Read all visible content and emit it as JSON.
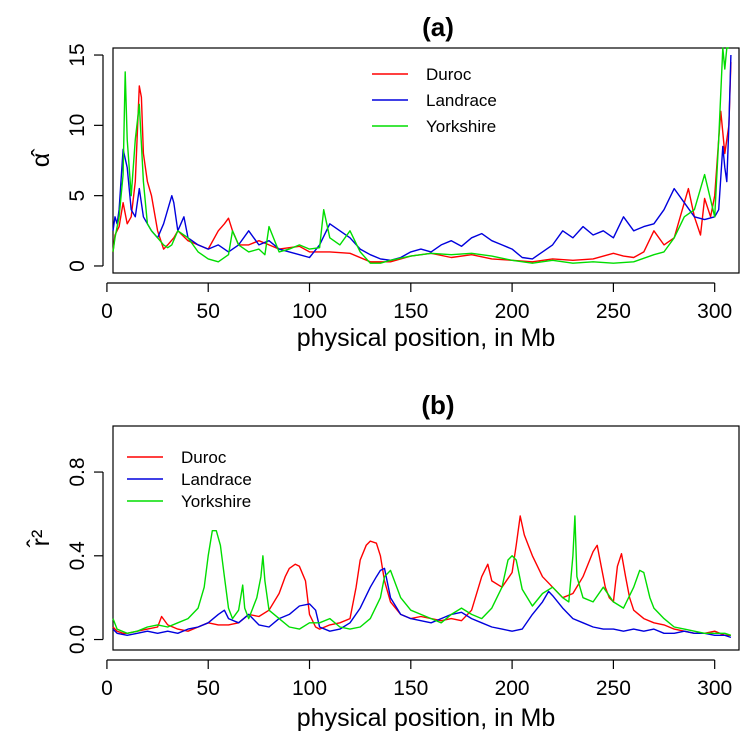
{
  "chart_data": [
    {
      "type": "line",
      "title": "(a)",
      "xlabel": "physical position, in Mb",
      "ylabel": "α̂",
      "xlim": [
        3,
        312
      ],
      "ylim": [
        -0.5,
        15.5
      ],
      "xticks": [
        0,
        50,
        100,
        150,
        200,
        250,
        300
      ],
      "yticks": [
        0,
        5,
        10,
        15
      ],
      "legend_position": "top-center",
      "grid": false,
      "series": [
        {
          "name": "Duroc",
          "color": "#ff0000",
          "x": [
            3,
            4,
            6,
            8,
            10,
            12,
            14,
            16,
            17,
            18,
            20,
            22,
            25,
            28,
            30,
            33,
            35,
            40,
            45,
            50,
            55,
            58,
            60,
            62,
            65,
            70,
            75,
            80,
            85,
            90,
            95,
            100,
            110,
            120,
            130,
            140,
            150,
            160,
            170,
            180,
            190,
            200,
            210,
            220,
            230,
            240,
            250,
            255,
            260,
            265,
            270,
            275,
            280,
            285,
            287,
            290,
            293,
            295,
            298,
            300,
            302,
            303,
            305,
            307,
            308
          ],
          "y": [
            1.0,
            2.2,
            2.8,
            4.5,
            3.0,
            3.5,
            6.0,
            12.8,
            12.0,
            8.0,
            6.0,
            5.0,
            2.5,
            1.2,
            1.5,
            2.0,
            2.5,
            1.8,
            1.5,
            1.2,
            2.5,
            3.0,
            3.4,
            2.5,
            1.5,
            1.5,
            1.8,
            1.5,
            1.2,
            1.3,
            1.4,
            1.0,
            1.0,
            0.9,
            0.3,
            0.3,
            0.7,
            0.9,
            0.6,
            0.8,
            0.5,
            0.4,
            0.3,
            0.5,
            0.4,
            0.5,
            0.9,
            0.7,
            0.6,
            1.0,
            2.5,
            1.5,
            2.0,
            4.5,
            5.5,
            3.5,
            2.2,
            4.8,
            3.5,
            5.0,
            9.0,
            11.0,
            8.0,
            10.0,
            14.5
          ]
        },
        {
          "name": "Landrace",
          "color": "#0000dd",
          "x": [
            3,
            4,
            5,
            6,
            8,
            10,
            12,
            14,
            16,
            18,
            20,
            22,
            25,
            28,
            30,
            32,
            33,
            35,
            38,
            40,
            45,
            50,
            55,
            60,
            65,
            70,
            75,
            80,
            85,
            90,
            95,
            100,
            105,
            110,
            115,
            120,
            125,
            130,
            135,
            140,
            145,
            150,
            155,
            160,
            165,
            170,
            175,
            180,
            185,
            190,
            195,
            200,
            205,
            210,
            215,
            220,
            225,
            230,
            235,
            240,
            245,
            250,
            255,
            260,
            265,
            270,
            275,
            280,
            285,
            290,
            295,
            300,
            302,
            304,
            305,
            306,
            307,
            308
          ],
          "y": [
            2.5,
            3.5,
            3.0,
            4.0,
            8.3,
            7.0,
            4.0,
            3.5,
            5.5,
            3.5,
            3.0,
            2.5,
            2.0,
            3.0,
            4.0,
            5.0,
            4.5,
            2.5,
            3.5,
            2.0,
            1.5,
            1.2,
            1.5,
            1.0,
            1.5,
            2.5,
            1.5,
            1.8,
            1.2,
            1.0,
            0.8,
            0.6,
            1.5,
            3.0,
            2.5,
            2.0,
            1.2,
            0.8,
            0.5,
            0.4,
            0.6,
            1.0,
            1.2,
            1.0,
            1.5,
            1.8,
            1.4,
            2.0,
            2.3,
            1.8,
            1.5,
            1.2,
            0.6,
            0.5,
            1.0,
            1.5,
            2.5,
            2.0,
            2.8,
            2.2,
            2.5,
            2.0,
            3.5,
            2.5,
            2.8,
            3.0,
            4.0,
            5.5,
            4.5,
            3.5,
            3.3,
            3.5,
            4.0,
            8.5,
            7.0,
            6.0,
            10.0,
            15.0
          ]
        },
        {
          "name": "Yorkshire",
          "color": "#00dd00",
          "x": [
            3,
            4,
            6,
            8,
            9,
            10,
            12,
            14,
            16,
            18,
            20,
            22,
            25,
            28,
            30,
            32,
            35,
            40,
            45,
            50,
            55,
            60,
            62,
            65,
            70,
            75,
            78,
            80,
            85,
            90,
            95,
            100,
            105,
            107,
            110,
            115,
            120,
            125,
            130,
            135,
            140,
            150,
            160,
            170,
            180,
            190,
            200,
            210,
            220,
            230,
            240,
            250,
            260,
            270,
            275,
            280,
            285,
            290,
            295,
            300,
            302,
            304,
            305,
            306,
            307
          ],
          "y": [
            1.0,
            2.0,
            3.5,
            6.5,
            13.8,
            9.0,
            5.0,
            9.0,
            11.5,
            6.0,
            3.0,
            2.5,
            2.0,
            1.5,
            1.3,
            1.5,
            2.5,
            2.0,
            1.0,
            0.5,
            0.3,
            0.8,
            2.5,
            1.5,
            1.0,
            1.2,
            0.8,
            2.8,
            1.0,
            1.2,
            1.5,
            1.2,
            1.3,
            4.0,
            2.0,
            1.5,
            2.5,
            1.0,
            0.2,
            0.2,
            0.4,
            0.7,
            0.9,
            0.8,
            0.9,
            0.7,
            0.4,
            0.2,
            0.4,
            0.2,
            0.3,
            0.2,
            0.3,
            0.8,
            1.0,
            2.0,
            3.5,
            4.0,
            6.5,
            3.5,
            9.0,
            15.5,
            14.0,
            15.5,
            15.5
          ]
        }
      ]
    },
    {
      "type": "line",
      "title": "(b)",
      "xlabel": "physical position, in Mb",
      "ylabel": "r̂²",
      "xlim": [
        3,
        312
      ],
      "ylim": [
        -0.05,
        1.02
      ],
      "xticks": [
        0,
        50,
        100,
        150,
        200,
        250,
        300
      ],
      "yticks": [
        0.0,
        0.4,
        0.8
      ],
      "legend_position": "top-left",
      "grid": false,
      "series": [
        {
          "name": "Duroc",
          "color": "#ff0000",
          "x": [
            3,
            5,
            8,
            10,
            15,
            20,
            25,
            27,
            30,
            35,
            40,
            45,
            50,
            55,
            60,
            65,
            70,
            75,
            80,
            85,
            88,
            90,
            93,
            95,
            98,
            100,
            103,
            105,
            110,
            115,
            120,
            123,
            125,
            128,
            130,
            133,
            135,
            137,
            140,
            145,
            150,
            155,
            160,
            165,
            170,
            175,
            180,
            185,
            188,
            190,
            195,
            200,
            202,
            204,
            206,
            208,
            210,
            215,
            220,
            225,
            230,
            235,
            240,
            242,
            244,
            246,
            248,
            250,
            252,
            254,
            256,
            258,
            260,
            265,
            270,
            275,
            280,
            285,
            290,
            295,
            300,
            305,
            308
          ],
          "y": [
            0.06,
            0.04,
            0.03,
            0.03,
            0.04,
            0.05,
            0.06,
            0.11,
            0.07,
            0.05,
            0.04,
            0.06,
            0.08,
            0.07,
            0.07,
            0.08,
            0.12,
            0.11,
            0.14,
            0.22,
            0.3,
            0.34,
            0.36,
            0.35,
            0.28,
            0.12,
            0.06,
            0.05,
            0.07,
            0.08,
            0.1,
            0.25,
            0.38,
            0.45,
            0.47,
            0.46,
            0.4,
            0.28,
            0.18,
            0.12,
            0.1,
            0.11,
            0.1,
            0.09,
            0.1,
            0.09,
            0.14,
            0.3,
            0.36,
            0.28,
            0.25,
            0.32,
            0.45,
            0.59,
            0.5,
            0.45,
            0.4,
            0.3,
            0.25,
            0.2,
            0.22,
            0.3,
            0.42,
            0.45,
            0.35,
            0.25,
            0.2,
            0.18,
            0.35,
            0.41,
            0.3,
            0.2,
            0.14,
            0.1,
            0.08,
            0.07,
            0.05,
            0.04,
            0.03,
            0.03,
            0.04,
            0.02,
            0.02
          ]
        },
        {
          "name": "Landrace",
          "color": "#0000dd",
          "x": [
            3,
            5,
            10,
            15,
            20,
            25,
            30,
            35,
            40,
            45,
            50,
            55,
            58,
            60,
            65,
            70,
            75,
            80,
            85,
            90,
            95,
            100,
            103,
            105,
            110,
            115,
            120,
            125,
            130,
            133,
            135,
            137,
            140,
            145,
            150,
            155,
            160,
            165,
            170,
            175,
            180,
            185,
            190,
            195,
            200,
            205,
            210,
            215,
            218,
            220,
            225,
            230,
            235,
            240,
            245,
            250,
            255,
            260,
            265,
            270,
            275,
            280,
            285,
            290,
            295,
            300,
            305,
            308
          ],
          "y": [
            0.05,
            0.03,
            0.02,
            0.03,
            0.04,
            0.03,
            0.04,
            0.03,
            0.05,
            0.06,
            0.08,
            0.12,
            0.14,
            0.1,
            0.08,
            0.12,
            0.07,
            0.06,
            0.1,
            0.12,
            0.16,
            0.17,
            0.14,
            0.06,
            0.04,
            0.05,
            0.08,
            0.15,
            0.25,
            0.3,
            0.33,
            0.34,
            0.2,
            0.12,
            0.1,
            0.09,
            0.08,
            0.1,
            0.12,
            0.13,
            0.1,
            0.08,
            0.06,
            0.05,
            0.04,
            0.05,
            0.12,
            0.18,
            0.23,
            0.21,
            0.15,
            0.1,
            0.08,
            0.06,
            0.05,
            0.05,
            0.04,
            0.05,
            0.04,
            0.05,
            0.03,
            0.03,
            0.04,
            0.03,
            0.03,
            0.02,
            0.02,
            0.01
          ]
        },
        {
          "name": "Yorkshire",
          "color": "#00dd00",
          "x": [
            3,
            5,
            10,
            15,
            20,
            25,
            30,
            35,
            40,
            45,
            48,
            50,
            52,
            54,
            56,
            58,
            60,
            62,
            65,
            67,
            68,
            70,
            72,
            74,
            76,
            77,
            78,
            80,
            85,
            90,
            95,
            100,
            105,
            110,
            115,
            120,
            125,
            130,
            135,
            137,
            140,
            145,
            150,
            155,
            160,
            165,
            170,
            175,
            180,
            185,
            190,
            195,
            198,
            200,
            202,
            205,
            210,
            215,
            220,
            225,
            228,
            230,
            231,
            232,
            235,
            240,
            245,
            250,
            255,
            260,
            263,
            265,
            268,
            270,
            275,
            280,
            285,
            290,
            295,
            300,
            305,
            308
          ],
          "y": [
            0.1,
            0.05,
            0.03,
            0.04,
            0.06,
            0.07,
            0.06,
            0.08,
            0.1,
            0.15,
            0.25,
            0.4,
            0.52,
            0.52,
            0.45,
            0.3,
            0.15,
            0.1,
            0.14,
            0.26,
            0.15,
            0.1,
            0.15,
            0.2,
            0.3,
            0.4,
            0.28,
            0.14,
            0.1,
            0.06,
            0.05,
            0.08,
            0.08,
            0.1,
            0.06,
            0.05,
            0.06,
            0.1,
            0.2,
            0.3,
            0.33,
            0.2,
            0.14,
            0.12,
            0.1,
            0.08,
            0.12,
            0.15,
            0.12,
            0.1,
            0.15,
            0.25,
            0.38,
            0.4,
            0.38,
            0.24,
            0.16,
            0.22,
            0.25,
            0.2,
            0.18,
            0.4,
            0.59,
            0.3,
            0.2,
            0.18,
            0.25,
            0.18,
            0.15,
            0.25,
            0.33,
            0.32,
            0.2,
            0.15,
            0.1,
            0.06,
            0.05,
            0.04,
            0.03,
            0.03,
            0.03,
            0.02
          ]
        }
      ]
    }
  ]
}
